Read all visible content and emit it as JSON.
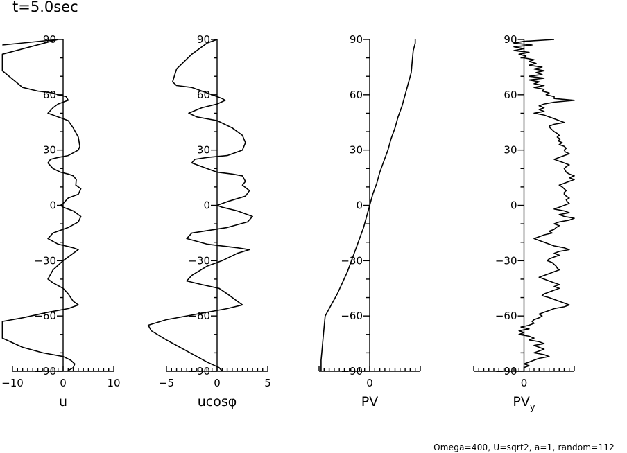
{
  "figure": {
    "title": "t=5.0sec",
    "caption": "Omega=400, U=sqrt2, a=1, random=112"
  },
  "chart_data": [
    {
      "type": "line",
      "xlabel": "u",
      "ylabel": "",
      "xlim": [
        -10,
        10
      ],
      "ylim": [
        -90,
        90
      ],
      "xticks": [
        -10,
        0,
        10
      ],
      "yticks": [
        -90,
        -60,
        -30,
        0,
        30,
        60,
        90
      ],
      "points": [
        [
          -12,
          87
        ],
        [
          -1,
          90
        ],
        [
          -12,
          82
        ],
        [
          -12,
          73
        ],
        [
          -8,
          64
        ],
        [
          -5,
          62
        ],
        [
          -2,
          61
        ],
        [
          -1,
          60
        ],
        [
          0.6,
          59
        ],
        [
          1,
          57
        ],
        [
          -1,
          55
        ],
        [
          -2,
          53
        ],
        [
          -3,
          50
        ],
        [
          -1,
          48
        ],
        [
          1,
          46
        ],
        [
          2,
          42
        ],
        [
          3,
          37
        ],
        [
          3.3,
          32
        ],
        [
          3,
          30
        ],
        [
          1,
          27
        ],
        [
          -1,
          26
        ],
        [
          -2.5,
          25
        ],
        [
          -3,
          23
        ],
        [
          -2,
          20
        ],
        [
          -0.5,
          18
        ],
        [
          1,
          17
        ],
        [
          2,
          16
        ],
        [
          2.6,
          14
        ],
        [
          2.5,
          11
        ],
        [
          3.5,
          9
        ],
        [
          3,
          6
        ],
        [
          1,
          4
        ],
        [
          0,
          1
        ],
        [
          -0.5,
          0
        ],
        [
          0,
          -1
        ],
        [
          2,
          -3
        ],
        [
          3.5,
          -6
        ],
        [
          3,
          -9
        ],
        [
          1,
          -12
        ],
        [
          -2,
          -15
        ],
        [
          -3,
          -18
        ],
        [
          -1,
          -21
        ],
        [
          2,
          -23
        ],
        [
          3,
          -24
        ],
        [
          2,
          -26
        ],
        [
          0,
          -30
        ],
        [
          -2,
          -35
        ],
        [
          -3,
          -40
        ],
        [
          -2,
          -42
        ],
        [
          0,
          -45
        ],
        [
          1,
          -48
        ],
        [
          2,
          -52
        ],
        [
          3,
          -54
        ],
        [
          1,
          -56
        ],
        [
          -3,
          -58
        ],
        [
          -8,
          -61
        ],
        [
          -12,
          -63
        ],
        [
          -12,
          -72
        ],
        [
          -8,
          -77
        ],
        [
          -4,
          -80
        ],
        [
          0,
          -82
        ],
        [
          1.5,
          -84
        ],
        [
          2.3,
          -86
        ],
        [
          2,
          -88
        ],
        [
          0.8,
          -90
        ]
      ]
    },
    {
      "type": "line",
      "xlabel": "ucosφ",
      "ylabel": "",
      "xlim": [
        -5,
        5
      ],
      "ylim": [
        -90,
        90
      ],
      "xticks": [
        -5,
        0,
        5
      ],
      "yticks": [
        -90,
        -60,
        -30,
        0,
        30,
        60,
        90
      ],
      "points": [
        [
          0,
          90
        ],
        [
          -1,
          88
        ],
        [
          -2.5,
          82
        ],
        [
          -4,
          74
        ],
        [
          -4.4,
          67
        ],
        [
          -4,
          65
        ],
        [
          -2.5,
          64
        ],
        [
          -1.5,
          62
        ],
        [
          -0.5,
          60
        ],
        [
          0.5,
          58
        ],
        [
          0.8,
          57
        ],
        [
          0,
          55
        ],
        [
          -1.5,
          53
        ],
        [
          -2.8,
          50
        ],
        [
          -2,
          48
        ],
        [
          0,
          46
        ],
        [
          1.5,
          42
        ],
        [
          2.5,
          38
        ],
        [
          2.8,
          34
        ],
        [
          2.5,
          30
        ],
        [
          1,
          27
        ],
        [
          -1,
          26
        ],
        [
          -2.2,
          25
        ],
        [
          -2.5,
          23
        ],
        [
          -1.5,
          21
        ],
        [
          0,
          18
        ],
        [
          1.5,
          17
        ],
        [
          2.5,
          16
        ],
        [
          2.8,
          13
        ],
        [
          2.5,
          11
        ],
        [
          3.2,
          8
        ],
        [
          2.8,
          5
        ],
        [
          1,
          2
        ],
        [
          0,
          0
        ],
        [
          0.5,
          -1
        ],
        [
          2,
          -3
        ],
        [
          3.5,
          -6
        ],
        [
          3,
          -9
        ],
        [
          1,
          -12
        ],
        [
          -2.5,
          -15
        ],
        [
          -3,
          -18
        ],
        [
          -1,
          -21
        ],
        [
          2,
          -23
        ],
        [
          3.2,
          -24
        ],
        [
          2,
          -26
        ],
        [
          0.5,
          -30
        ],
        [
          -1,
          -33
        ],
        [
          -2.5,
          -38
        ],
        [
          -3,
          -41
        ],
        [
          -1.5,
          -43
        ],
        [
          0.2,
          -45
        ],
        [
          1,
          -48
        ],
        [
          2,
          -52
        ],
        [
          2.5,
          -54
        ],
        [
          1,
          -56
        ],
        [
          -2,
          -59
        ],
        [
          -5,
          -62
        ],
        [
          -6.8,
          -65
        ],
        [
          -6.5,
          -68
        ],
        [
          -5,
          -73
        ],
        [
          -3,
          -79
        ],
        [
          -1,
          -85
        ],
        [
          0.2,
          -88
        ],
        [
          0.5,
          -90
        ]
      ]
    },
    {
      "type": "line",
      "xlabel": "PV",
      "ylabel": "",
      "xlim": [
        -5,
        5
      ],
      "ylim": [
        -90,
        90
      ],
      "xticks": [
        0
      ],
      "yticks": [
        -90,
        -60,
        -30,
        0,
        30,
        60,
        90
      ],
      "points": [
        [
          -4.8,
          -90
        ],
        [
          -4.8,
          -84
        ],
        [
          -4.7,
          -78
        ],
        [
          -4.6,
          -72
        ],
        [
          -4.5,
          -66
        ],
        [
          -4.4,
          -60
        ],
        [
          -3.8,
          -54
        ],
        [
          -3.2,
          -48
        ],
        [
          -2.7,
          -42
        ],
        [
          -2.2,
          -36
        ],
        [
          -1.8,
          -30
        ],
        [
          -1.4,
          -24
        ],
        [
          -1,
          -18
        ],
        [
          -0.6,
          -12
        ],
        [
          -0.3,
          -6
        ],
        [
          0,
          0
        ],
        [
          0.3,
          6
        ],
        [
          0.7,
          12
        ],
        [
          1,
          18
        ],
        [
          1.4,
          24
        ],
        [
          1.8,
          30
        ],
        [
          2.1,
          36
        ],
        [
          2.5,
          42
        ],
        [
          2.8,
          48
        ],
        [
          3.2,
          54
        ],
        [
          3.5,
          60
        ],
        [
          3.8,
          66
        ],
        [
          4.1,
          72
        ],
        [
          4.2,
          78
        ],
        [
          4.3,
          84
        ],
        [
          4.5,
          88
        ],
        [
          4.5,
          90
        ]
      ]
    },
    {
      "type": "line",
      "xlabel": "PV",
      "xlabel_sub": "y",
      "ylabel": "",
      "xlim": [
        -5,
        5
      ],
      "ylim": [
        -90,
        90
      ],
      "xticks": [
        0
      ],
      "yticks": [
        -90,
        -60,
        -30,
        0,
        30,
        60,
        90
      ],
      "points": [
        [
          3,
          90
        ],
        [
          0,
          89
        ],
        [
          -1,
          88
        ],
        [
          0.8,
          87
        ],
        [
          -1,
          86
        ],
        [
          0,
          85
        ],
        [
          -1,
          84
        ],
        [
          0.5,
          83
        ],
        [
          -0.5,
          82
        ],
        [
          0.2,
          81
        ],
        [
          0,
          80
        ],
        [
          1,
          79
        ],
        [
          0.5,
          78
        ],
        [
          1.2,
          77
        ],
        [
          0.5,
          76
        ],
        [
          1.8,
          75
        ],
        [
          1,
          74
        ],
        [
          2,
          73
        ],
        [
          1.2,
          72
        ],
        [
          1.8,
          71
        ],
        [
          0.5,
          70
        ],
        [
          2,
          69
        ],
        [
          0.5,
          68
        ],
        [
          1.5,
          67
        ],
        [
          1,
          66
        ],
        [
          2,
          65
        ],
        [
          1,
          64
        ],
        [
          2,
          63
        ],
        [
          1.8,
          62
        ],
        [
          2.5,
          61
        ],
        [
          2.2,
          60
        ],
        [
          3,
          59
        ],
        [
          3,
          58
        ],
        [
          5,
          57
        ],
        [
          3,
          56
        ],
        [
          2,
          55
        ],
        [
          1.5,
          54
        ],
        [
          2,
          53
        ],
        [
          1.5,
          52
        ],
        [
          2,
          51
        ],
        [
          1,
          50
        ],
        [
          2,
          49
        ],
        [
          2.5,
          48
        ],
        [
          3,
          47
        ],
        [
          3.5,
          46
        ],
        [
          4,
          45
        ],
        [
          3,
          44
        ],
        [
          2.5,
          43
        ],
        [
          2.6,
          42
        ],
        [
          2.8,
          41
        ],
        [
          3,
          40
        ],
        [
          3.3,
          39
        ],
        [
          3.5,
          38
        ],
        [
          3.3,
          37
        ],
        [
          3.6,
          36
        ],
        [
          3.4,
          35
        ],
        [
          3.8,
          34
        ],
        [
          3.5,
          33
        ],
        [
          4,
          32
        ],
        [
          4.2,
          31
        ],
        [
          4,
          30
        ],
        [
          4.1,
          29
        ],
        [
          4.5,
          28
        ],
        [
          4,
          27
        ],
        [
          3.5,
          26
        ],
        [
          3,
          25
        ],
        [
          3.5,
          24
        ],
        [
          4,
          23
        ],
        [
          4.5,
          22
        ],
        [
          4.2,
          21
        ],
        [
          4,
          20
        ],
        [
          4.1,
          19
        ],
        [
          4.2,
          18
        ],
        [
          4.5,
          17
        ],
        [
          5,
          16
        ],
        [
          4.5,
          15
        ],
        [
          5,
          14
        ],
        [
          4.5,
          13
        ],
        [
          4,
          12
        ],
        [
          3.5,
          11
        ],
        [
          3.8,
          10
        ],
        [
          4,
          9
        ],
        [
          4.2,
          8
        ],
        [
          4,
          7
        ],
        [
          4,
          6
        ],
        [
          4.2,
          5
        ],
        [
          4.5,
          4
        ],
        [
          4.2,
          3
        ],
        [
          4.3,
          2
        ],
        [
          4.5,
          1
        ],
        [
          4,
          0
        ],
        [
          3.5,
          -1
        ],
        [
          3,
          -2
        ],
        [
          4,
          -3
        ],
        [
          4.5,
          -4
        ],
        [
          3.5,
          -5
        ],
        [
          4,
          -6
        ],
        [
          5,
          -7
        ],
        [
          4.5,
          -8
        ],
        [
          3.5,
          -9
        ],
        [
          3,
          -10
        ],
        [
          3.5,
          -11
        ],
        [
          3.2,
          -12
        ],
        [
          3,
          -13
        ],
        [
          2.5,
          -14
        ],
        [
          2.8,
          -15
        ],
        [
          2,
          -16
        ],
        [
          1.5,
          -17
        ],
        [
          1,
          -18
        ],
        [
          1.5,
          -19
        ],
        [
          2,
          -20
        ],
        [
          2.5,
          -21
        ],
        [
          3,
          -22
        ],
        [
          4,
          -23
        ],
        [
          4.5,
          -24
        ],
        [
          3.5,
          -25
        ],
        [
          3,
          -26
        ],
        [
          3.5,
          -27
        ],
        [
          3,
          -28
        ],
        [
          2.5,
          -29
        ],
        [
          2.3,
          -30
        ],
        [
          2.8,
          -31
        ],
        [
          3,
          -32
        ],
        [
          3.2,
          -33
        ],
        [
          3.3,
          -34
        ],
        [
          3.5,
          -35
        ],
        [
          3,
          -36
        ],
        [
          2.5,
          -37
        ],
        [
          2,
          -38
        ],
        [
          1.5,
          -39
        ],
        [
          2,
          -40
        ],
        [
          2.5,
          -41
        ],
        [
          3,
          -42
        ],
        [
          3.5,
          -43
        ],
        [
          3,
          -44
        ],
        [
          3.5,
          -45
        ],
        [
          3,
          -46
        ],
        [
          2.5,
          -47
        ],
        [
          2,
          -48
        ],
        [
          1.8,
          -49
        ],
        [
          2.5,
          -50
        ],
        [
          3,
          -51
        ],
        [
          3.5,
          -52
        ],
        [
          4,
          -53
        ],
        [
          4.5,
          -54
        ],
        [
          4,
          -55
        ],
        [
          3,
          -56
        ],
        [
          2.5,
          -57
        ],
        [
          2,
          -58
        ],
        [
          1.5,
          -59
        ],
        [
          1.8,
          -60
        ],
        [
          1.5,
          -61
        ],
        [
          1,
          -62
        ],
        [
          0.8,
          -63
        ],
        [
          1,
          -64
        ],
        [
          0.5,
          -65
        ],
        [
          -0.3,
          -66
        ],
        [
          0.5,
          -67
        ],
        [
          -0.5,
          -68
        ],
        [
          0,
          -69
        ],
        [
          -0.5,
          -70
        ],
        [
          0.5,
          -71
        ],
        [
          1,
          -72
        ],
        [
          0.5,
          -73
        ],
        [
          1.5,
          -74
        ],
        [
          2,
          -75
        ],
        [
          1,
          -76
        ],
        [
          1.5,
          -77
        ],
        [
          2,
          -78
        ],
        [
          1.5,
          -79
        ],
        [
          1,
          -80
        ],
        [
          2,
          -81
        ],
        [
          2.5,
          -82
        ],
        [
          1.5,
          -83
        ],
        [
          1,
          -84
        ],
        [
          0.5,
          -85
        ],
        [
          0,
          -86
        ],
        [
          0.5,
          -87
        ],
        [
          0,
          -88
        ],
        [
          0,
          -89
        ],
        [
          0,
          -90
        ]
      ]
    }
  ]
}
